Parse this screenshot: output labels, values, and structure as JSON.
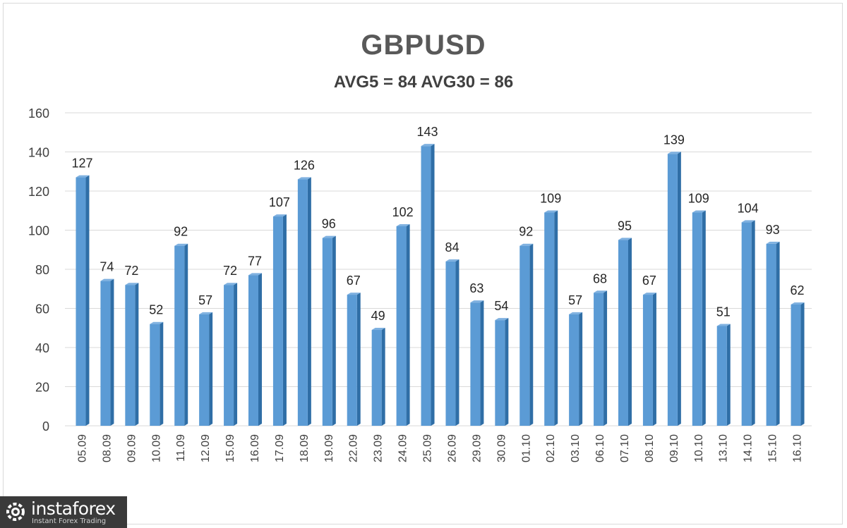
{
  "chart_data": {
    "type": "bar",
    "title": "GBPUSD",
    "subtitle": "AVG5 = 84 AVG30 = 86",
    "categories": [
      "05.09",
      "08.09",
      "09.09",
      "10.09",
      "11.09",
      "12.09",
      "15.09",
      "16.09",
      "17.09",
      "18.09",
      "19.09",
      "22.09",
      "23.09",
      "24.09",
      "25.09",
      "26.09",
      "29.09",
      "30.09",
      "01.10",
      "02.10",
      "03.10",
      "06.10",
      "07.10",
      "08.10",
      "09.10",
      "10.10",
      "13.10",
      "14.10",
      "15.10",
      "16.10"
    ],
    "values": [
      127,
      74,
      72,
      52,
      92,
      57,
      72,
      77,
      107,
      126,
      96,
      67,
      49,
      102,
      143,
      84,
      63,
      54,
      92,
      109,
      57,
      68,
      95,
      67,
      139,
      109,
      51,
      104,
      93,
      62
    ],
    "yticks": [
      0,
      20,
      40,
      60,
      80,
      100,
      120,
      140,
      160
    ],
    "ylim": [
      0,
      160
    ],
    "grid": true,
    "data_labels": true,
    "bar_color": "#5b9bd5",
    "bar_dark_color": "#2f6ea6"
  },
  "watermark": {
    "name": "instaforex",
    "tagline": "Instant Forex Trading"
  }
}
